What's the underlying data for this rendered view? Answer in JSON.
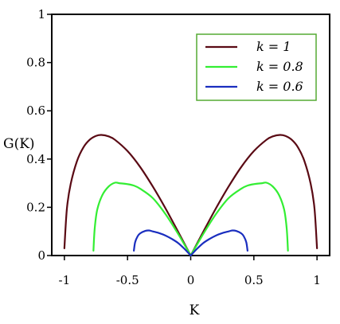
{
  "chart_data": {
    "type": "line",
    "xlabel": "K",
    "ylabel": "G(K)",
    "xlim": [
      -1.1,
      1.1
    ],
    "ylim": [
      0,
      1
    ],
    "x_ticks": [
      -1,
      -0.5,
      0,
      0.5,
      1
    ],
    "x_tick_labels": [
      "-1",
      "-0.5",
      "0",
      "0.5",
      "1"
    ],
    "y_ticks": [
      0,
      0.2,
      0.4,
      0.6,
      0.8,
      1
    ],
    "y_tick_labels": [
      "0",
      "0.2",
      "0.4",
      "0.6",
      "0.8",
      "1"
    ],
    "legend_position": "top-right",
    "series": [
      {
        "name": "k = 1",
        "color": "#5a0a14",
        "x": [
          -1.0,
          -0.98,
          -0.95,
          -0.9,
          -0.85,
          -0.8,
          -0.75,
          -0.707,
          -0.65,
          -0.6,
          -0.5,
          -0.4,
          -0.3,
          -0.2,
          -0.1,
          0,
          0.1,
          0.2,
          0.3,
          0.4,
          0.5,
          0.6,
          0.65,
          0.707,
          0.75,
          0.8,
          0.85,
          0.9,
          0.95,
          0.98,
          1.0
        ],
        "y": [
          0.03,
          0.195,
          0.297,
          0.392,
          0.448,
          0.48,
          0.496,
          0.5,
          0.494,
          0.48,
          0.433,
          0.367,
          0.286,
          0.196,
          0.099,
          0.0,
          0.099,
          0.196,
          0.286,
          0.367,
          0.433,
          0.48,
          0.494,
          0.5,
          0.496,
          0.48,
          0.448,
          0.392,
          0.297,
          0.195,
          0.03
        ]
      },
      {
        "name": "k = 0.8",
        "color": "#33ee33",
        "x": [
          -0.77,
          -0.76,
          -0.74,
          -0.7,
          -0.65,
          -0.6,
          -0.566,
          -0.5,
          -0.45,
          -0.4,
          -0.3,
          -0.2,
          -0.1,
          0,
          0.1,
          0.2,
          0.3,
          0.4,
          0.45,
          0.5,
          0.566,
          0.6,
          0.65,
          0.7,
          0.74,
          0.76,
          0.77
        ],
        "y": [
          0.02,
          0.112,
          0.19,
          0.25,
          0.286,
          0.302,
          0.3,
          0.296,
          0.29,
          0.277,
          0.238,
          0.172,
          0.09,
          0.0,
          0.09,
          0.172,
          0.238,
          0.277,
          0.29,
          0.296,
          0.3,
          0.302,
          0.286,
          0.25,
          0.19,
          0.112,
          0.02
        ]
      },
      {
        "name": "k = 0.6",
        "color": "#1a2ebf",
        "x": [
          -0.45,
          -0.44,
          -0.42,
          -0.4,
          -0.36,
          -0.33,
          -0.3,
          -0.25,
          -0.2,
          -0.15,
          -0.1,
          -0.05,
          0,
          0.05,
          0.1,
          0.15,
          0.2,
          0.25,
          0.3,
          0.33,
          0.36,
          0.4,
          0.42,
          0.44,
          0.45
        ],
        "y": [
          0.02,
          0.055,
          0.08,
          0.092,
          0.102,
          0.104,
          0.1,
          0.093,
          0.083,
          0.069,
          0.052,
          0.028,
          0.0,
          0.028,
          0.052,
          0.069,
          0.083,
          0.093,
          0.1,
          0.104,
          0.102,
          0.092,
          0.08,
          0.055,
          0.02
        ]
      }
    ]
  }
}
